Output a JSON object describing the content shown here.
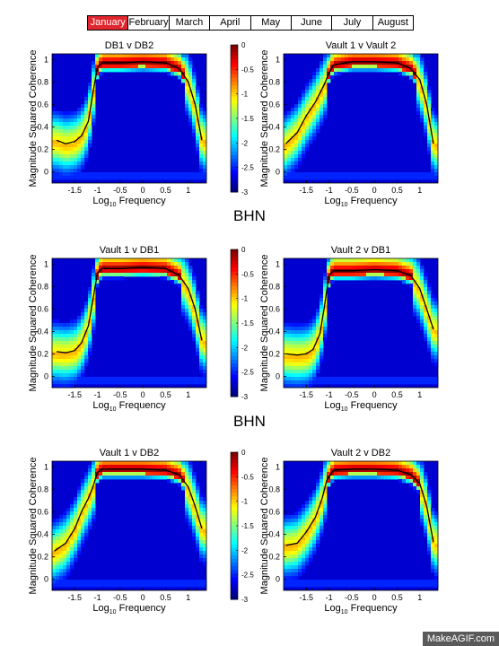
{
  "months": {
    "items": [
      "January",
      "February",
      "March",
      "April",
      "May",
      "June",
      "July",
      "August"
    ],
    "active": 0,
    "active_color": "#e0262e"
  },
  "section_labels": [
    "BHN",
    "BHN"
  ],
  "watermark": "MakeAGIF.com",
  "colorbar": {
    "range": [
      -3,
      0
    ],
    "ticks": [
      "0",
      "-0.5",
      "-1",
      "-1.5",
      "-2",
      "-2.5",
      "-3"
    ],
    "colormap": "jet"
  },
  "chart_data": [
    {
      "type": "heatmap",
      "title": "DB1 v DB2",
      "xlabel": "Log10 Frequency",
      "ylabel": "Magnitude Squared Coherence",
      "xlim": [
        -2,
        1.4
      ],
      "ylim": [
        -0.1,
        1.05
      ],
      "xticks": [
        "-1.5",
        "-1",
        "-0.5",
        "0",
        "0.5",
        "1"
      ],
      "yticks": [
        "0",
        "0.2",
        "0.4",
        "0.6",
        "0.8",
        "1"
      ],
      "has_colorbar": true,
      "mean_coherence": {
        "x": [
          -1.9,
          -1.7,
          -1.5,
          -1.35,
          -1.2,
          -1.1,
          -1.0,
          -0.9,
          -0.5,
          0.0,
          0.5,
          0.8,
          1.0,
          1.15,
          1.3
        ],
        "y": [
          0.28,
          0.25,
          0.27,
          0.32,
          0.45,
          0.7,
          0.93,
          0.97,
          0.97,
          0.98,
          0.97,
          0.92,
          0.8,
          0.6,
          0.28
        ]
      }
    },
    {
      "type": "heatmap",
      "title": "Vault 1 v Vault 2",
      "xlabel": "Log10 Frequency",
      "ylabel": "Magnitude Squared Coherence",
      "xlim": [
        -2,
        1.4
      ],
      "ylim": [
        -0.1,
        1.05
      ],
      "xticks": [
        "-1.5",
        "-1",
        "-0.5",
        "0",
        "0.5",
        "1"
      ],
      "yticks": [
        "0",
        "0.2",
        "0.4",
        "0.6",
        "0.8",
        "1"
      ],
      "has_colorbar": false,
      "mean_coherence": {
        "x": [
          -1.95,
          -1.7,
          -1.5,
          -1.3,
          -1.1,
          -1.0,
          -0.9,
          -0.5,
          0.0,
          0.5,
          0.8,
          1.0,
          1.15,
          1.3
        ],
        "y": [
          0.25,
          0.35,
          0.5,
          0.62,
          0.78,
          0.88,
          0.95,
          0.98,
          0.98,
          0.97,
          0.92,
          0.82,
          0.6,
          0.25
        ]
      }
    },
    {
      "type": "heatmap",
      "title": "Vault 1 v DB1",
      "xlabel": "Log10 Frequency",
      "ylabel": "Magnitude Squared Coherence",
      "xlim": [
        -2,
        1.4
      ],
      "ylim": [
        -0.1,
        1.05
      ],
      "xticks": [
        "-1.5",
        "-1",
        "-0.5",
        "0",
        "0.5",
        "1"
      ],
      "yticks": [
        "0",
        "0.2",
        "0.4",
        "0.6",
        "0.8",
        "1"
      ],
      "has_colorbar": true,
      "mean_coherence": {
        "x": [
          -1.9,
          -1.7,
          -1.5,
          -1.35,
          -1.2,
          -1.1,
          -1.0,
          -0.9,
          -0.5,
          0.0,
          0.5,
          0.8,
          1.0,
          1.15,
          1.3
        ],
        "y": [
          0.22,
          0.21,
          0.23,
          0.3,
          0.45,
          0.68,
          0.92,
          0.96,
          0.96,
          0.97,
          0.96,
          0.9,
          0.78,
          0.6,
          0.32
        ]
      }
    },
    {
      "type": "heatmap",
      "title": "Vault 2 v DB1",
      "xlabel": "Log10 Frequency",
      "ylabel": "Magnitude Squared Coherence",
      "xlim": [
        -2,
        1.4
      ],
      "ylim": [
        -0.1,
        1.05
      ],
      "xticks": [
        "-1.5",
        "-1",
        "-0.5",
        "0",
        "0.5",
        "1"
      ],
      "yticks": [
        "0",
        "0.2",
        "0.4",
        "0.6",
        "0.8",
        "1"
      ],
      "has_colorbar": false,
      "mean_coherence": {
        "x": [
          -1.95,
          -1.7,
          -1.5,
          -1.35,
          -1.2,
          -1.1,
          -1.0,
          -0.9,
          -0.5,
          0.0,
          0.5,
          0.8,
          1.0,
          1.15,
          1.3
        ],
        "y": [
          0.2,
          0.19,
          0.2,
          0.24,
          0.38,
          0.62,
          0.9,
          0.94,
          0.94,
          0.95,
          0.94,
          0.9,
          0.78,
          0.6,
          0.42
        ]
      }
    },
    {
      "type": "heatmap",
      "title": "Vault 1 v DB2",
      "xlabel": "Log10 Frequency",
      "ylabel": "Magnitude Squared Coherence",
      "xlim": [
        -2,
        1.4
      ],
      "ylim": [
        -0.1,
        1.05
      ],
      "xticks": [
        "-1.5",
        "-1",
        "-0.5",
        "0",
        "0.5",
        "1"
      ],
      "yticks": [
        "0",
        "0.2",
        "0.4",
        "0.6",
        "0.8",
        "1"
      ],
      "has_colorbar": true,
      "mean_coherence": {
        "x": [
          -1.95,
          -1.7,
          -1.5,
          -1.35,
          -1.2,
          -1.1,
          -1.0,
          -0.9,
          -0.5,
          0.0,
          0.5,
          0.8,
          1.0,
          1.15,
          1.3
        ],
        "y": [
          0.25,
          0.32,
          0.45,
          0.6,
          0.72,
          0.82,
          0.95,
          0.98,
          0.98,
          0.98,
          0.97,
          0.93,
          0.82,
          0.65,
          0.45
        ]
      }
    },
    {
      "type": "heatmap",
      "title": "Vault 2 v DB2",
      "xlabel": "Log10 Frequency",
      "ylabel": "Magnitude Squared Coherence",
      "xlim": [
        -2,
        1.4
      ],
      "ylim": [
        -0.1,
        1.05
      ],
      "xticks": [
        "-1.5",
        "-1",
        "-0.5",
        "0",
        "0.5",
        "1"
      ],
      "yticks": [
        "0",
        "0.2",
        "0.4",
        "0.6",
        "0.8",
        "1"
      ],
      "has_colorbar": false,
      "mean_coherence": {
        "x": [
          -1.95,
          -1.7,
          -1.5,
          -1.3,
          -1.15,
          -1.05,
          -0.9,
          -0.5,
          0.0,
          0.5,
          0.8,
          1.0,
          1.15,
          1.3
        ],
        "y": [
          0.3,
          0.32,
          0.42,
          0.55,
          0.72,
          0.88,
          0.97,
          0.98,
          0.98,
          0.97,
          0.93,
          0.85,
          0.65,
          0.33
        ]
      }
    }
  ]
}
